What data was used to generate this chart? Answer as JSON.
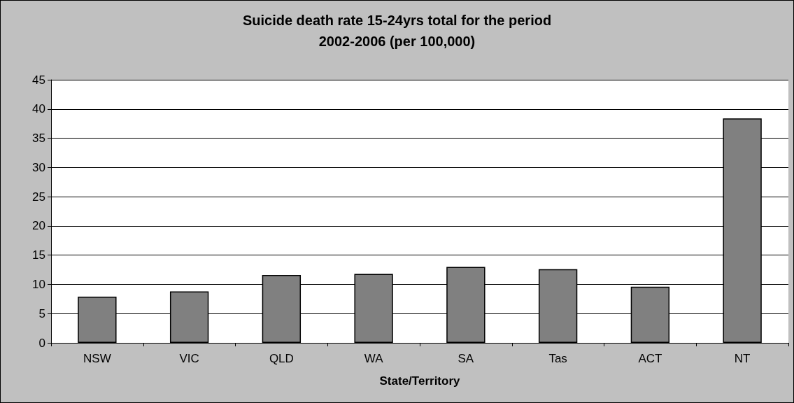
{
  "chart_data": {
    "type": "bar",
    "title": "Suicide death rate 15-24yrs total for the period\n2002-2006 (per 100,000)",
    "xlabel": "State/Territory",
    "categories": [
      "NSW",
      "VIC",
      "QLD",
      "WA",
      "SA",
      "Tas",
      "ACT",
      "NT"
    ],
    "values": [
      7.9,
      8.8,
      11.6,
      11.8,
      13.0,
      12.6,
      9.6,
      38.4
    ],
    "color": "#808080",
    "ylim": [
      0,
      45
    ],
    "yticks": [
      0,
      5,
      10,
      15,
      20,
      25,
      30,
      35,
      40,
      45
    ],
    "grid": "y"
  }
}
